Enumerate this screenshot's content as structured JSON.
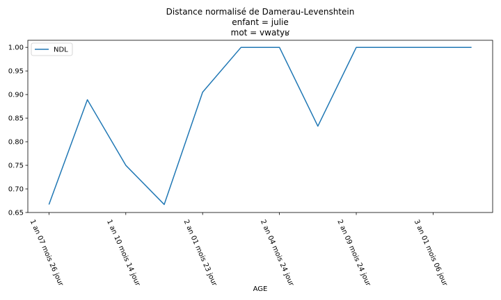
{
  "chart_data": {
    "type": "line",
    "title_lines": [
      "Distance normalisé de Damerau-Levenshtein",
      "enfant = julie",
      "mot = vwatyʁ"
    ],
    "xlabel": "AGE",
    "ylabel": "",
    "x_tick_labels": [
      "1 an 07 mois 26 jour",
      "1 an 10 mois 14 jour",
      "2 an 01 mois 23 jour",
      "2 an 04 mois 24 jour",
      "2 an 09 mois 24 jour",
      "3 an 01 mois 06 jour"
    ],
    "x_tick_positions": [
      0,
      2,
      4,
      6,
      8,
      10
    ],
    "xlim": [
      -0.55,
      11.55
    ],
    "ylim": [
      0.65,
      1.015
    ],
    "y_ticks": [
      0.65,
      0.7,
      0.75,
      0.8,
      0.85,
      0.9,
      0.95,
      1.0
    ],
    "y_tick_labels": [
      "0.65",
      "0.70",
      "0.75",
      "0.80",
      "0.85",
      "0.90",
      "0.95",
      "1.00"
    ],
    "grid": false,
    "legend_position": "upper-left",
    "series": [
      {
        "name": "NDL",
        "color": "#1f77b4",
        "x": [
          0,
          1,
          2,
          3,
          4,
          5,
          6,
          7,
          8,
          9,
          10,
          11
        ],
        "values": [
          0.667,
          0.889,
          0.75,
          0.667,
          0.905,
          1.0,
          1.0,
          0.833,
          1.0,
          1.0,
          1.0,
          1.0
        ]
      }
    ]
  }
}
